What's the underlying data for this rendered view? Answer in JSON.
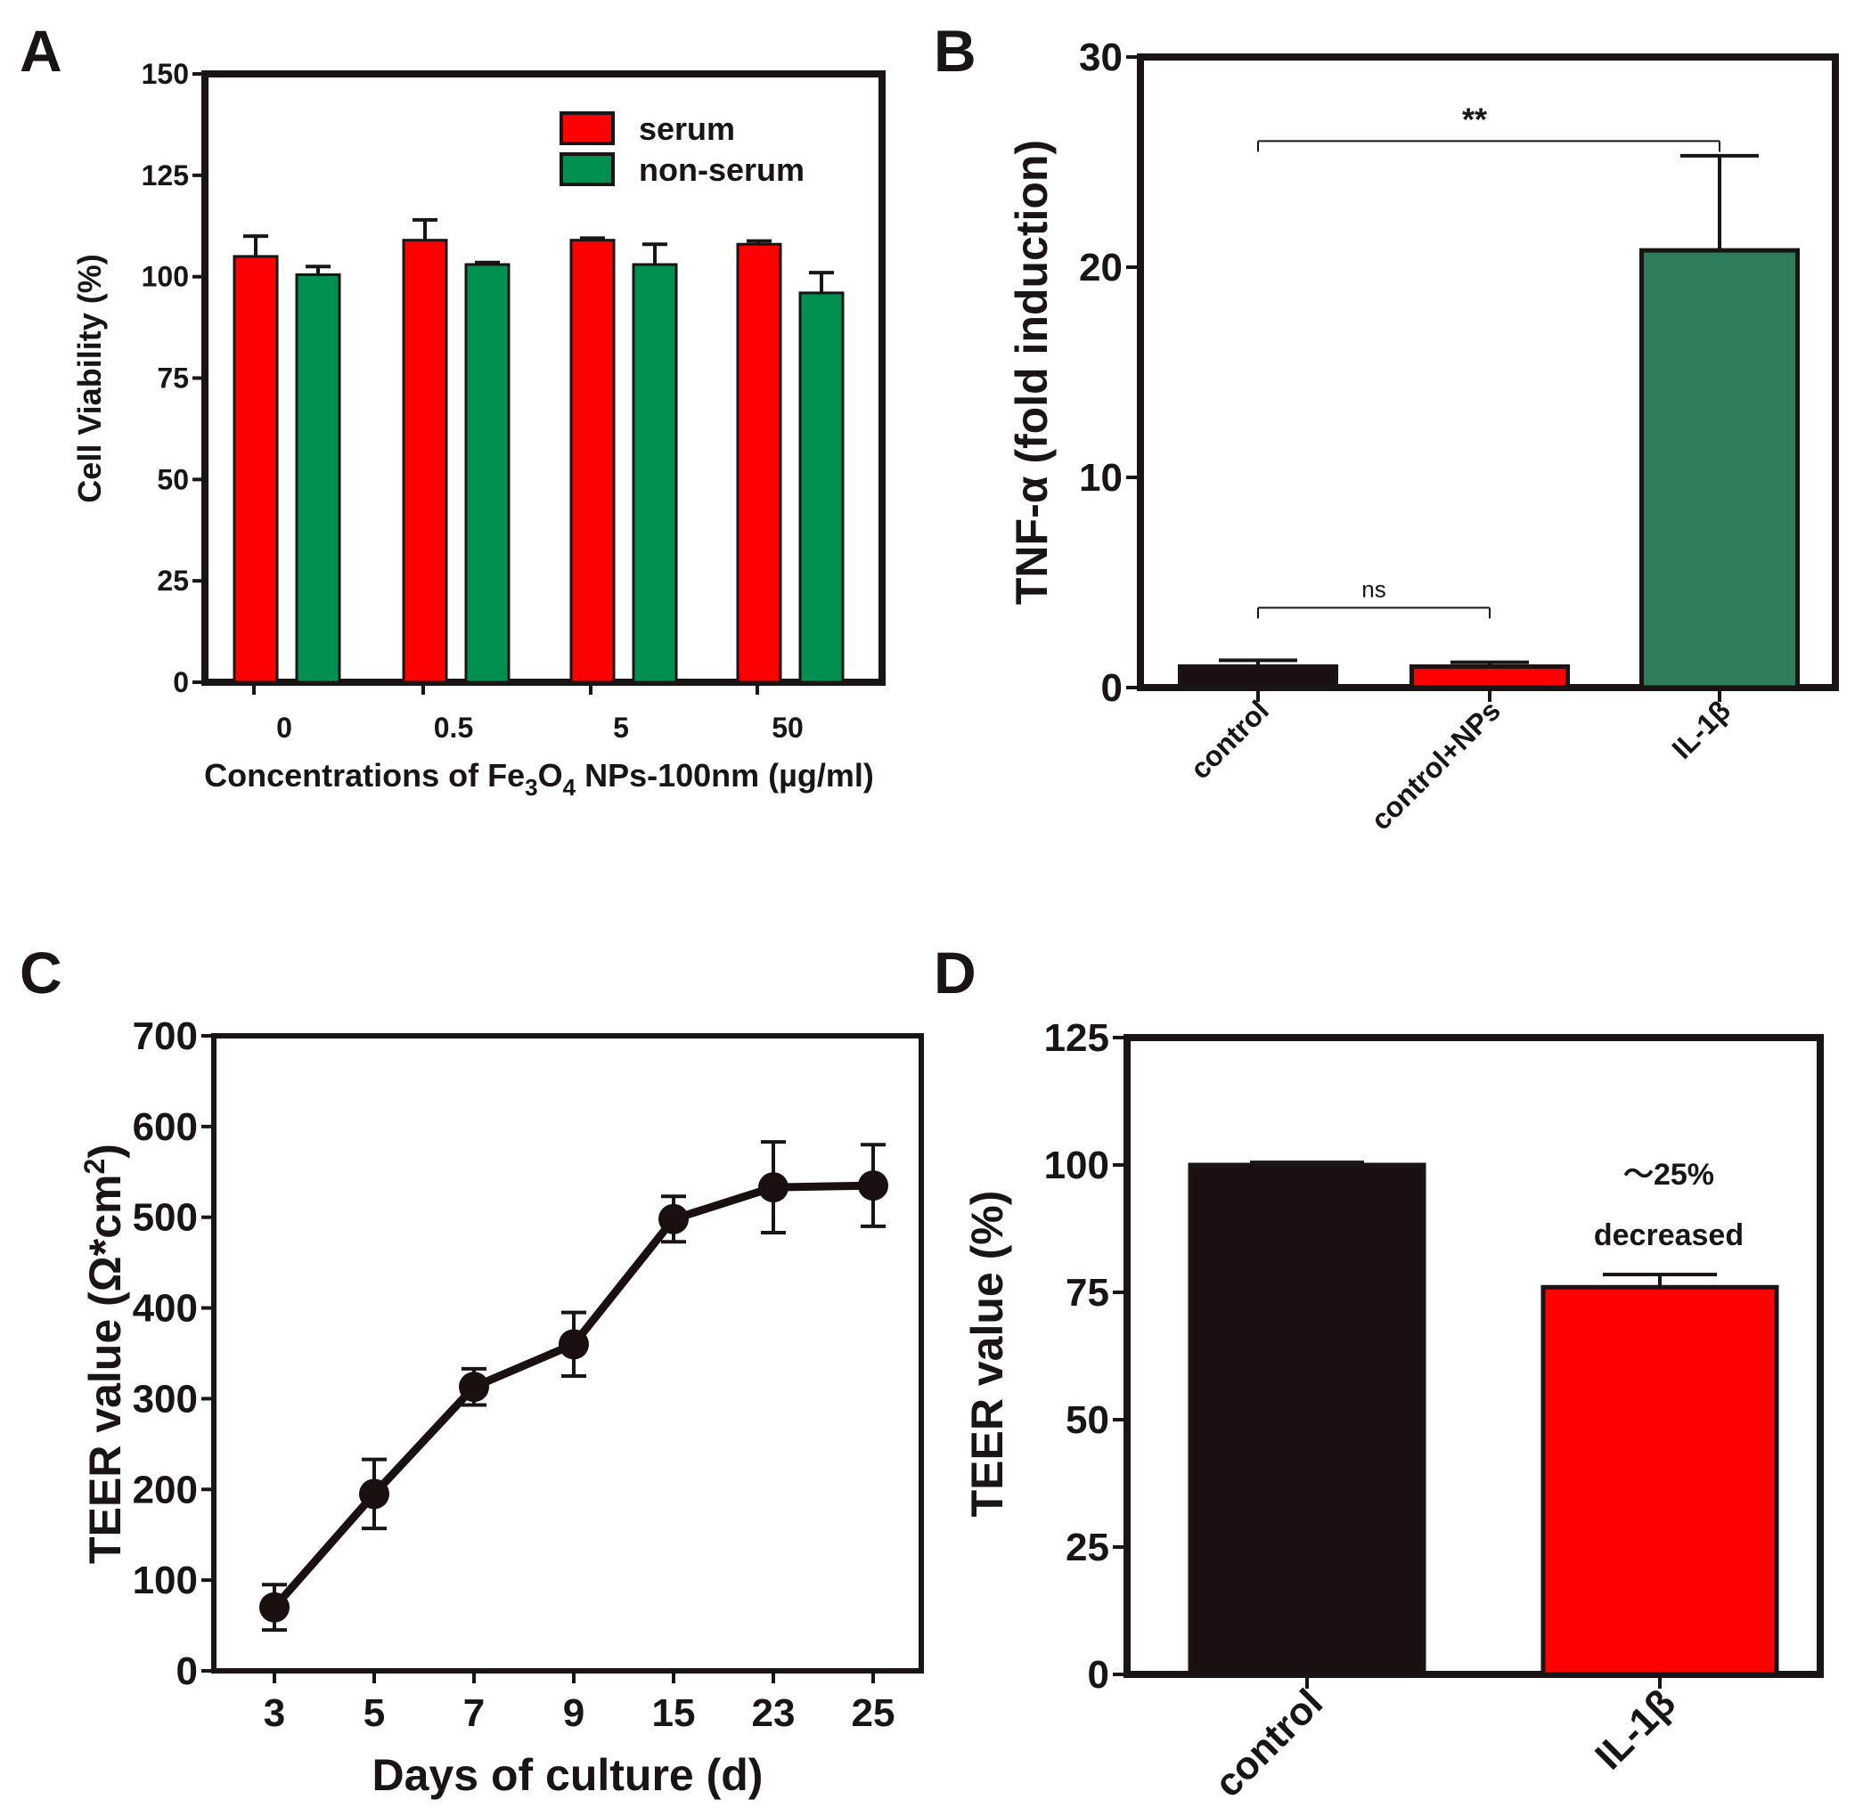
{
  "panels": {
    "a": "A",
    "b": "B",
    "c": "C",
    "d": "D"
  },
  "colors": {
    "serum": "#ff0000",
    "non_serum": "#009150",
    "il1b_b": "#2e7d5b",
    "control": "#1a1010",
    "frame": "#1a1414"
  },
  "chart_data": [
    {
      "id": "A",
      "type": "bar",
      "categories": [
        "0",
        "0.5",
        "5",
        "50"
      ],
      "series": [
        {
          "name": "serum",
          "values": [
            105,
            109,
            109,
            108
          ],
          "errors": [
            5,
            5,
            0.5,
            0.8
          ]
        },
        {
          "name": "non-serum",
          "values": [
            100.5,
            103,
            103,
            96
          ],
          "errors": [
            2,
            0.5,
            5,
            5
          ]
        }
      ],
      "ylabel": "Cell Viability (%)",
      "xlabel_parts": {
        "pre": "Concentrations of Fe",
        "sub1": "3",
        "mid": "O",
        "sub2": "4",
        "post": " NPs-100nm (µg/ml)"
      },
      "yticks": [
        "0",
        "25",
        "50",
        "75",
        "100",
        "125",
        "150"
      ],
      "ylim": [
        0,
        150
      ],
      "legend_position": "top-right"
    },
    {
      "id": "B",
      "type": "bar",
      "categories": [
        "control",
        "control+NPs",
        "IL-1β"
      ],
      "values": [
        1.0,
        1.0,
        20.8
      ],
      "errors": [
        0.3,
        0.2,
        4.5
      ],
      "ylabel": "TNF-α (fold induction)",
      "yticks": [
        "0",
        "10",
        "20",
        "30"
      ],
      "ylim": [
        0,
        30
      ],
      "annotations": [
        {
          "label": "**",
          "from": "control",
          "to": "IL-1β",
          "y": 26
        },
        {
          "label": "ns",
          "from": "control",
          "to": "control+NPs",
          "y": 3.8
        }
      ]
    },
    {
      "id": "C",
      "type": "line",
      "categories": [
        "3",
        "5",
        "7",
        "9",
        "15",
        "23",
        "25"
      ],
      "values": [
        70,
        195,
        313,
        360,
        498,
        533,
        535
      ],
      "errors": [
        25,
        38,
        20,
        35,
        25,
        50,
        45
      ],
      "xlabel": "Days of culture (d)",
      "ylabel_main": "TEER value (Ω*cm",
      "ylabel_sup": "2",
      "ylabel_end": ")",
      "yticks": [
        "0",
        "100",
        "200",
        "300",
        "400",
        "500",
        "600",
        "700"
      ],
      "ylim": [
        0,
        700
      ]
    },
    {
      "id": "D",
      "type": "bar",
      "categories": [
        "control",
        "IL-1β"
      ],
      "values": [
        100,
        76
      ],
      "errors": [
        0.5,
        2.5
      ],
      "ylabel": "TEER value (%)",
      "yticks": [
        "0",
        "25",
        "50",
        "75",
        "100",
        "125"
      ],
      "ylim": [
        0,
        125
      ],
      "annotation_line1": "～25%",
      "annotation_line2": "decreased"
    }
  ]
}
